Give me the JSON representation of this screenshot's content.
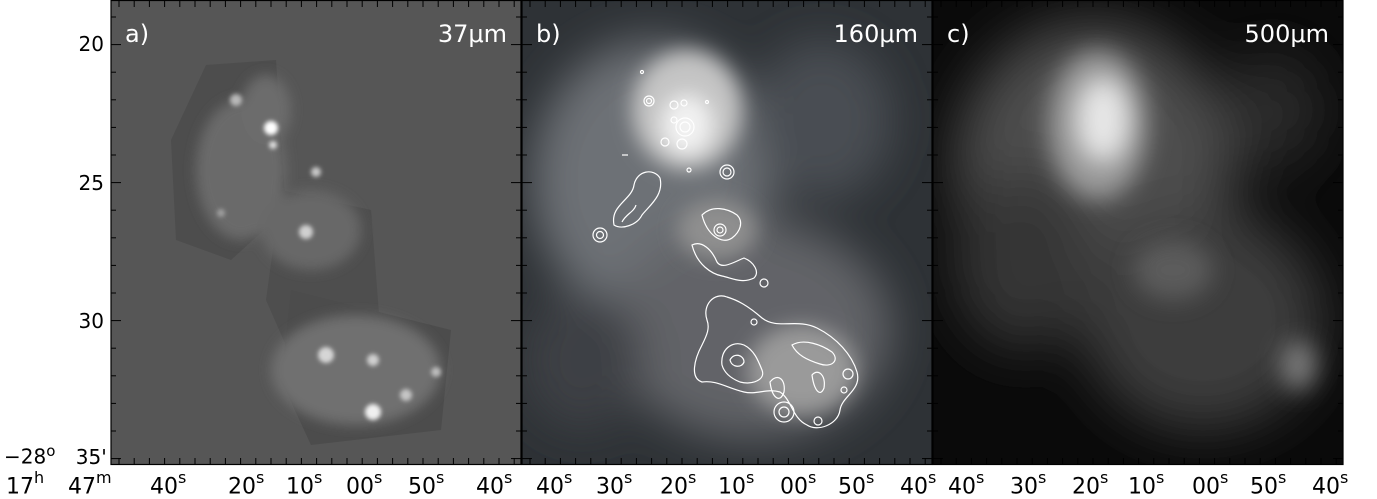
{
  "panels": [
    {
      "id": "a",
      "label": "a)",
      "wavelength": "37μm"
    },
    {
      "id": "b",
      "label": "b)",
      "wavelength": "160μm"
    },
    {
      "id": "c",
      "label": "c)",
      "wavelength": "500μm"
    }
  ],
  "y_axis": {
    "ticks": [
      "20",
      "25",
      "30",
      "35'"
    ],
    "origin_prefix": "−28",
    "origin_sup": "o"
  },
  "x_axis": {
    "panel_a": [
      {
        "num": "17",
        "sup": "h"
      },
      {
        "num": "47",
        "sup": "m"
      },
      {
        "num": "40",
        "sup": "s"
      },
      {
        "num": "20",
        "sup": "s"
      },
      {
        "num": "10",
        "sup": "s"
      },
      {
        "num": "00",
        "sup": "s"
      },
      {
        "num": "50",
        "sup": "s"
      },
      {
        "num": "40",
        "sup": "s"
      }
    ],
    "panel_b": [
      {
        "num": "40",
        "sup": "s"
      },
      {
        "num": "30",
        "sup": "s"
      },
      {
        "num": "20",
        "sup": "s"
      },
      {
        "num": "10",
        "sup": "s"
      },
      {
        "num": "00",
        "sup": "s"
      },
      {
        "num": "50",
        "sup": "s"
      },
      {
        "num": "40",
        "sup": "s"
      }
    ],
    "panel_c": [
      {
        "num": "40",
        "sup": "s"
      },
      {
        "num": "30",
        "sup": "s"
      },
      {
        "num": "20",
        "sup": "s"
      },
      {
        "num": "10",
        "sup": "s"
      },
      {
        "num": "00",
        "sup": "s"
      },
      {
        "num": "50",
        "sup": "s"
      },
      {
        "num": "40",
        "sup": "s"
      }
    ]
  },
  "colors": {
    "panel_a_background": "#565656",
    "panel_b_background": "#2e3236",
    "panel_c_background": "#0a0a0a",
    "contour": "#ffffff",
    "label_text": "#ffffff",
    "axis_text": "#000000"
  }
}
